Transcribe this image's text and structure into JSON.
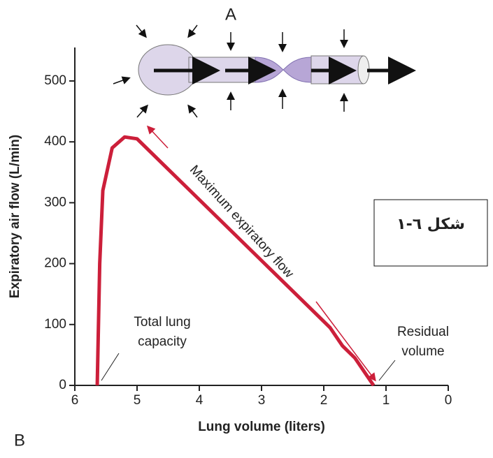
{
  "chart_data": {
    "type": "line",
    "title_a": "A",
    "title_b": "B",
    "x_label": "Lung volume (liters)",
    "y_label": "Expiratory air flow (L/min)",
    "x": [
      5.64,
      5.6,
      5.55,
      5.4,
      5.2,
      5.0,
      4.5,
      4.0,
      3.5,
      3.0,
      2.5,
      2.1,
      1.9,
      1.7,
      1.5,
      1.3,
      1.2
    ],
    "values": [
      0,
      200,
      320,
      390,
      408,
      405,
      355,
      305,
      255,
      205,
      155,
      115,
      95,
      65,
      45,
      15,
      0
    ],
    "color": "#cc1f3a",
    "xlim": [
      6,
      0
    ],
    "xticks": [
      6,
      5,
      4,
      3,
      2,
      1,
      0
    ],
    "ylim": [
      0,
      555
    ],
    "yticks": [
      0,
      100,
      200,
      300,
      400,
      500
    ],
    "annotations": {
      "curve": "Maximum expiratory flow",
      "tlc": [
        "Total lung",
        "capacity"
      ],
      "rv": [
        "Residual",
        "volume"
      ],
      "figure": "شكل ٦-١"
    }
  }
}
